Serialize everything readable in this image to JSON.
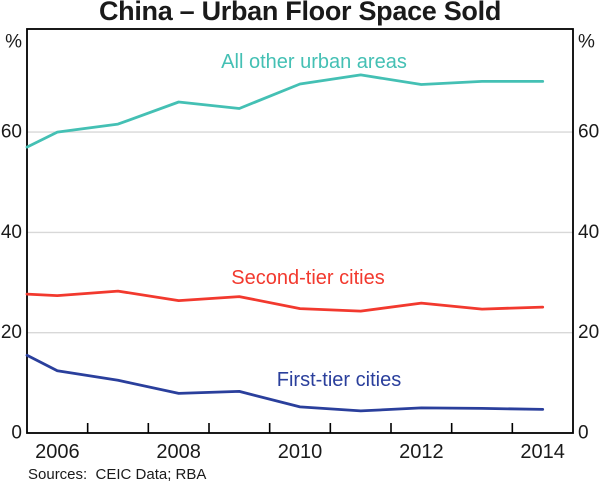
{
  "title": "China – Urban Floor Space Sold",
  "footer": {
    "source_note": "Sources:  CEIC Data; RBA"
  },
  "axis": {
    "y_unit_left": "%",
    "y_unit_right": "%"
  },
  "chart_data": {
    "type": "line",
    "title": "China – Urban Floor Space Sold",
    "ylabel": "%",
    "y_unit_both_sides": "%",
    "ylim": [
      0,
      80
    ],
    "yticks": [
      0,
      20,
      40,
      60
    ],
    "grid": "horizontal-gridlines-at-20-40-60",
    "legend_position": "inline-series-labels",
    "x_axis_range": [
      2005.5,
      2014.5
    ],
    "x": [
      2005.5,
      2006,
      2007,
      2008,
      2009,
      2010,
      2011,
      2012,
      2013,
      2014
    ],
    "x_note": "first point is the series value where the line meets the left plot edge (mid-2005); annual observations thereafter; minor tick marks at each half-year 2006.5–2013.5",
    "xtick_labels": [
      "2006",
      "2008",
      "2010",
      "2012",
      "2014"
    ],
    "xtick_label_positions": [
      2006,
      2008,
      2010,
      2012,
      2014
    ],
    "series": [
      {
        "name": "All other urban areas",
        "color": "#44C0B4",
        "values": [
          57.0,
          60.0,
          61.6,
          66.0,
          64.7,
          69.6,
          71.4,
          69.5,
          70.1,
          70.1
        ]
      },
      {
        "name": "Second-tier cities",
        "color": "#F2392E",
        "values": [
          27.7,
          27.4,
          28.3,
          26.4,
          27.2,
          24.8,
          24.3,
          25.9,
          24.7,
          25.1
        ]
      },
      {
        "name": "First-tier cities",
        "color": "#2A3F9C",
        "values": [
          15.5,
          12.4,
          10.5,
          7.9,
          8.3,
          5.2,
          4.4,
          5.0,
          4.9,
          4.7
        ]
      }
    ],
    "colors": {
      "gridline": "#D8D8D8",
      "axis": "#000000",
      "text": "#1A1A1A"
    }
  }
}
